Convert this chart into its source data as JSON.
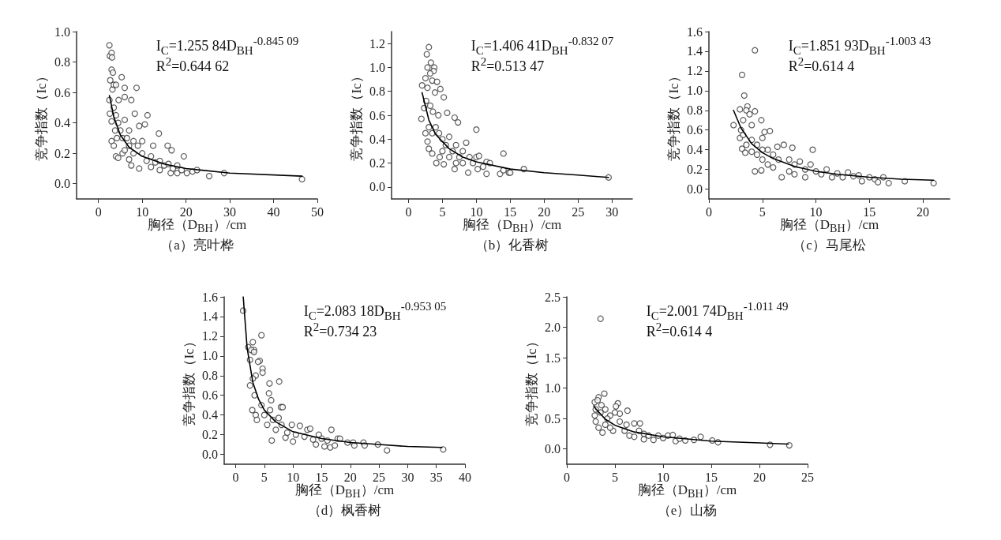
{
  "chart_data": [
    {
      "type": "scatter",
      "title": "（a）亮叶桦",
      "xlabel": "胸径（D$_{BH}$）/cm",
      "ylabel": "竞争指数（Ic）",
      "annotations": [
        "I$_{C}$=1.255 84D$_{BH}$$^{-0.845 09}$",
        "R$^{2}$=0.644 62"
      ],
      "xlim": [
        -5,
        50
      ],
      "ylim": [
        -0.1,
        1.0
      ],
      "xticks": [
        0,
        10,
        20,
        30,
        40,
        50
      ],
      "yticks": [
        {
          "value": 0,
          "label": "0.0"
        },
        0.2,
        0.4,
        0.6,
        0.8,
        {
          "value": 1,
          "label": "1.0"
        }
      ],
      "series": [
        {
          "type": "scatter",
          "color": "#333333",
          "marker": "circle",
          "x": [
            2.5,
            2.6,
            3.0,
            3.1,
            3.0,
            3.3,
            2.7,
            2.5,
            2.6,
            3.0,
            3.2,
            3.5,
            4.0,
            5.3,
            4.6,
            6.0,
            6.0,
            7.5,
            8.7,
            8.3,
            11.2,
            9.3,
            10.6,
            13.8,
            15.8,
            16.7,
            19.5,
            4.0,
            4.5,
            5.5,
            7.5,
            9.3,
            12,
            14,
            16.5,
            18,
            20.2,
            21.5,
            22.5,
            25.3,
            28.7,
            46.5,
            3.5,
            4,
            4.5,
            3.8,
            5,
            5.5,
            6,
            6.5,
            7,
            7,
            8,
            8,
            9,
            10,
            10,
            11,
            12,
            12.5,
            13,
            14,
            15,
            16,
            17,
            18,
            19,
            3,
            3.5,
            4.2,
            6,
            7
          ],
          "values": [
            0.91,
            0.84,
            0.86,
            0.83,
            0.75,
            0.73,
            0.68,
            0.55,
            0.46,
            0.41,
            0.62,
            0.65,
            0.65,
            0.7,
            0.55,
            0.63,
            0.57,
            0.55,
            0.63,
            0.46,
            0.45,
            0.38,
            0.39,
            0.33,
            0.25,
            0.22,
            0.18,
            0.18,
            0.17,
            0.2,
            0.12,
            0.1,
            0.11,
            0.09,
            0.07,
            0.07,
            0.07,
            0.08,
            0.09,
            0.05,
            0.07,
            0.03,
            0.5,
            0.45,
            0.4,
            0.35,
            0.35,
            0.3,
            0.42,
            0.3,
            0.25,
            0.35,
            0.28,
            0.2,
            0.25,
            0.2,
            0.28,
            0.15,
            0.18,
            0.25,
            0.14,
            0.15,
            0.12,
            0.13,
            0.1,
            0.12,
            0.09,
            0.28,
            0.25,
            0.3,
            0.22,
            0.16
          ]
        },
        {
          "type": "line",
          "color": "#000000",
          "marker": "none",
          "line_style": "solid",
          "x": [
            2.5,
            3.5,
            5,
            7,
            10,
            15,
            20,
            30,
            46.5
          ],
          "values": [
            0.58,
            0.44,
            0.32,
            0.24,
            0.18,
            0.13,
            0.1,
            0.07,
            0.05
          ]
        }
      ]
    },
    {
      "type": "scatter",
      "title": "（b）化香树",
      "xlabel": "胸径（D$_{BH}$）/cm",
      "ylabel": "竞争指数（Ic）",
      "annotations": [
        "I$_{C}$=1.406 41D$_{BH}$$^{-0.832 07}$",
        "R$^{2}$=0.513 47"
      ],
      "xlim": [
        -2.5,
        33
      ],
      "ylim": [
        -0.1,
        1.3
      ],
      "xticks": [
        0,
        5,
        10,
        15,
        20,
        25,
        30
      ],
      "yticks": [
        {
          "value": 0,
          "label": "0.0"
        },
        0.2,
        0.4,
        0.6,
        0.8,
        {
          "value": 1,
          "label": "1.0"
        },
        1.2
      ],
      "series": [
        {
          "type": "scatter",
          "color": "#333333",
          "marker": "circle",
          "x": [
            3.0,
            2.7,
            3.3,
            2.8,
            3.8,
            3.7,
            3.2,
            2.5,
            3.5,
            2.0,
            2.8,
            4.2,
            4.7,
            3.9,
            5.2,
            1.9,
            2.3,
            2.6,
            3.2,
            3.6,
            4.4,
            5.7,
            6.8,
            7.3,
            10.0,
            2.5,
            2.8,
            3.0,
            3.5,
            4.1,
            4.6,
            5.2,
            4,
            4.5,
            5,
            5.5,
            6,
            6.5,
            6.8,
            7,
            7.5,
            8,
            8,
            8.5,
            8.8,
            9,
            9.5,
            10,
            10.4,
            10.2,
            11,
            11.5,
            11.5,
            12,
            13.5,
            14,
            14,
            14.8,
            15,
            17,
            29.5,
            3,
            3.5,
            5,
            6,
            7
          ],
          "values": [
            1.17,
            1.11,
            1.04,
            1.0,
            1.0,
            0.97,
            0.95,
            0.91,
            0.89,
            0.85,
            0.83,
            0.88,
            0.82,
            0.79,
            0.75,
            0.57,
            0.66,
            0.72,
            0.68,
            0.63,
            0.6,
            0.62,
            0.58,
            0.54,
            0.48,
            0.45,
            0.38,
            0.32,
            0.28,
            0.2,
            0.25,
            0.19,
            0.5,
            0.45,
            0.4,
            0.35,
            0.42,
            0.3,
            0.15,
            0.35,
            0.25,
            0.3,
            0.2,
            0.37,
            0.12,
            0.25,
            0.2,
            0.25,
            0.26,
            0.15,
            0.17,
            0.11,
            0.21,
            0.2,
            0.11,
            0.14,
            0.28,
            0.12,
            0.12,
            0.15,
            0.08,
            0.5,
            0.45,
            0.3,
            0.25,
            0.2
          ]
        },
        {
          "type": "line",
          "color": "#000000",
          "marker": "none",
          "line_style": "solid",
          "x": [
            2,
            3,
            4,
            6,
            8,
            10,
            15,
            20,
            25,
            29.5
          ],
          "values": [
            0.79,
            0.56,
            0.44,
            0.32,
            0.25,
            0.21,
            0.15,
            0.12,
            0.1,
            0.08
          ]
        }
      ]
    },
    {
      "type": "scatter",
      "title": "（c）马尾松",
      "xlabel": "胸径（D$_{BH}$）/cm",
      "ylabel": "竞争指数（Ic）",
      "annotations": [
        "I$_{C}$=1.851 93D$_{BH}$$^{-1.003 43}$",
        "R$^{2}$=0.614 4"
      ],
      "xlim": [
        0,
        22.5
      ],
      "ylim": [
        -0.1,
        1.6
      ],
      "xticks": [
        0,
        5,
        10,
        15,
        20
      ],
      "yticks": [
        {
          "value": 0,
          "label": "0.0"
        },
        0.2,
        0.4,
        0.6,
        0.8,
        {
          "value": 1,
          "label": "1.0"
        },
        1.2,
        1.4,
        1.6
      ],
      "series": [
        {
          "type": "scatter",
          "color": "#333333",
          "marker": "circle",
          "x": [
            4.3,
            3.1,
            3.3,
            3.6,
            2.9,
            3.5,
            4.3,
            3.8,
            3.2,
            4.9,
            4.0,
            2.3,
            3.0,
            5.7,
            5.2,
            2.9,
            3.1,
            3.4,
            4.3,
            4.9,
            3.5,
            4,
            4.5,
            4.5,
            5,
            5,
            5.5,
            5.5,
            6,
            6,
            6.4,
            6.5,
            6.8,
            7.0,
            7.5,
            7.5,
            7.8,
            8,
            8,
            8.5,
            9,
            9,
            9.5,
            9.7,
            10,
            10.5,
            11,
            11.5,
            12,
            12.5,
            13,
            13.5,
            14,
            14.3,
            15,
            15.5,
            15.8,
            16.3,
            16.8,
            18.3,
            21,
            5,
            4,
            3.2
          ],
          "values": [
            1.41,
            1.16,
            0.95,
            0.84,
            0.81,
            0.8,
            0.79,
            0.76,
            0.7,
            0.7,
            0.65,
            0.65,
            0.6,
            0.59,
            0.58,
            0.52,
            0.41,
            0.37,
            0.18,
            0.19,
            0.45,
            0.5,
            0.45,
            0.35,
            0.52,
            0.3,
            0.4,
            0.25,
            0.35,
            0.22,
            0.43,
            0.3,
            0.12,
            0.45,
            0.3,
            0.18,
            0.42,
            0.25,
            0.15,
            0.28,
            0.2,
            0.12,
            0.25,
            0.4,
            0.18,
            0.15,
            0.2,
            0.12,
            0.16,
            0.12,
            0.17,
            0.13,
            0.14,
            0.08,
            0.12,
            0.1,
            0.07,
            0.12,
            0.06,
            0.08,
            0.06,
            0.4,
            0.38,
            0.55
          ]
        },
        {
          "type": "line",
          "color": "#000000",
          "marker": "none",
          "line_style": "solid",
          "x": [
            2.3,
            3,
            4,
            5,
            6,
            8,
            10,
            12,
            15,
            18,
            21
          ],
          "values": [
            0.8,
            0.62,
            0.46,
            0.37,
            0.31,
            0.23,
            0.18,
            0.15,
            0.12,
            0.1,
            0.09
          ]
        }
      ]
    },
    {
      "type": "scatter",
      "title": "（d）枫香树",
      "xlabel": "胸径（D$_{BH}$）/cm",
      "ylabel": "竞争指数（Ic）",
      "annotations": [
        "I$_{C}$=2.083 18D$_{BH}$$^{-0.953 05}$",
        "R$^{2}$=0.734 23"
      ],
      "xlim": [
        -2,
        40
      ],
      "ylim": [
        -0.1,
        1.6
      ],
      "xticks": [
        0,
        5,
        10,
        15,
        20,
        25,
        30,
        35,
        40
      ],
      "yticks": [
        {
          "value": 0,
          "label": "0.0"
        },
        0.2,
        0.4,
        0.6,
        0.8,
        {
          "value": 1,
          "label": "1.0"
        },
        1.2,
        1.4,
        1.6
      ],
      "series": [
        {
          "type": "scatter",
          "color": "#333333",
          "marker": "circle",
          "x": [
            1.3,
            4.5,
            3.0,
            3.2,
            2.2,
            2.7,
            3.2,
            2.5,
            4.2,
            3.9,
            4.7,
            4.7,
            3.5,
            3.0,
            5.9,
            7.6,
            2.5,
            3.3,
            5.8,
            6.2,
            7.9,
            8.2,
            2.9,
            3.5,
            3.7,
            4.5,
            5,
            5.5,
            6,
            6.5,
            6.3,
            7,
            7.5,
            8,
            8.7,
            9,
            9.8,
            10,
            10.5,
            11.2,
            12,
            12.5,
            13,
            13.5,
            14,
            14.5,
            15,
            15.5,
            16,
            16.5,
            16.7,
            17.3,
            17.8,
            18.2,
            19.5,
            20.5,
            20.7,
            22.3,
            22.5,
            24.8,
            26.4,
            36.2
          ],
          "values": [
            1.46,
            1.21,
            1.14,
            1.06,
            1.09,
            1.06,
            1.04,
            0.96,
            0.95,
            0.94,
            0.87,
            0.83,
            0.8,
            0.77,
            0.72,
            0.74,
            0.7,
            0.6,
            0.62,
            0.55,
            0.48,
            0.48,
            0.45,
            0.4,
            0.35,
            0.5,
            0.4,
            0.3,
            0.45,
            0.35,
            0.14,
            0.25,
            0.37,
            0.3,
            0.17,
            0.22,
            0.3,
            0.13,
            0.2,
            0.29,
            0.18,
            0.25,
            0.26,
            0.15,
            0.1,
            0.2,
            0.16,
            0.08,
            0.14,
            0.07,
            0.25,
            0.09,
            0.16,
            0.16,
            0.12,
            0.12,
            0.09,
            0.12,
            0.09,
            0.1,
            0.04,
            0.05
          ]
        },
        {
          "type": "line",
          "color": "#000000",
          "marker": "none",
          "line_style": "solid",
          "x": [
            1.32,
            2,
            3,
            4,
            5,
            7,
            10,
            15,
            20,
            25,
            30,
            36
          ],
          "values": [
            1.6,
            1.08,
            0.73,
            0.56,
            0.45,
            0.33,
            0.23,
            0.16,
            0.12,
            0.1,
            0.08,
            0.07
          ]
        }
      ]
    },
    {
      "type": "scatter",
      "title": "（e）山杨",
      "xlabel": "胸径（D$_{BH}$）/cm",
      "ylabel": "竞争指数（Ic）",
      "annotations": [
        "I$_{C}$=2.001 74D$_{BH}$$^{-1.011 49}$",
        "R$^{2}$=0.614 4"
      ],
      "xlim": [
        0,
        25
      ],
      "ylim": [
        -0.25,
        2.5
      ],
      "xticks": [
        0,
        5,
        10,
        15,
        20,
        25
      ],
      "yticks": [
        {
          "value": 0,
          "label": "0.0"
        },
        0.5,
        {
          "value": 1,
          "label": "1.0"
        },
        1.5,
        {
          "value": 2,
          "label": "2.0"
        },
        2.5
      ],
      "series": [
        {
          "type": "scatter",
          "color": "#333333",
          "marker": "circle",
          "x": [
            3.5,
            3.9,
            3.3,
            2.9,
            3.2,
            5.3,
            5.1,
            3.6,
            6.3,
            4.5,
            5.5,
            5.0,
            2.9,
            3.0,
            3.3,
            3.7,
            4,
            4.2,
            4.8,
            5.5,
            6,
            6.2,
            6.5,
            7,
            7,
            7.5,
            7.6,
            8,
            8,
            8.5,
            9,
            9.5,
            10,
            10.5,
            11,
            11.3,
            11.7,
            12.3,
            13.2,
            13.9,
            15.1,
            15.7,
            21.1,
            23.1,
            3.5,
            4,
            3,
            4.5
          ],
          "values": [
            2.14,
            0.91,
            0.85,
            0.77,
            0.8,
            0.75,
            0.7,
            0.72,
            0.63,
            0.55,
            0.58,
            0.6,
            0.55,
            0.45,
            0.35,
            0.27,
            0.4,
            0.5,
            0.3,
            0.45,
            0.3,
            0.4,
            0.22,
            0.42,
            0.2,
            0.3,
            0.42,
            0.25,
            0.16,
            0.22,
            0.15,
            0.22,
            0.18,
            0.22,
            0.23,
            0.13,
            0.17,
            0.14,
            0.15,
            0.2,
            0.14,
            0.11,
            0.07,
            0.06,
            0.6,
            0.65,
            0.65,
            0.35
          ]
        },
        {
          "type": "line",
          "color": "#000000",
          "marker": "none",
          "line_style": "solid",
          "x": [
            2.8,
            3,
            4,
            5,
            7,
            10,
            15,
            20,
            23
          ],
          "values": [
            0.71,
            0.66,
            0.49,
            0.39,
            0.28,
            0.2,
            0.13,
            0.1,
            0.08
          ]
        }
      ]
    }
  ]
}
